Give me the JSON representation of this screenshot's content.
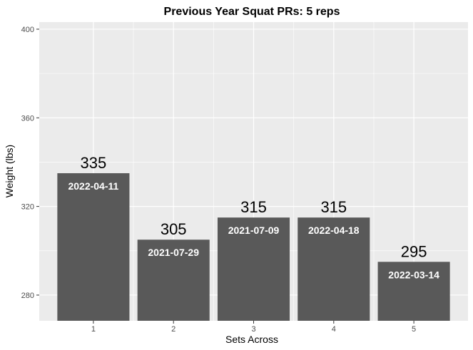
{
  "chart_data": {
    "type": "bar",
    "title": "Previous Year Squat PRs: 5 reps",
    "xlabel": "Sets Across",
    "ylabel": "Weight (lbs)",
    "categories": [
      "1",
      "2",
      "3",
      "4",
      "5"
    ],
    "values": [
      335,
      305,
      315,
      315,
      295
    ],
    "dates": [
      "2022-04-11",
      "2021-07-29",
      "2021-07-09",
      "2022-04-18",
      "2022-03-14"
    ],
    "ylim": [
      268.4,
      403.2
    ],
    "yticks": [
      280,
      320,
      360,
      400
    ],
    "grid": true,
    "colors": {
      "panel": "#ebebeb",
      "bar": "#595959",
      "grid": "#ffffff"
    }
  }
}
